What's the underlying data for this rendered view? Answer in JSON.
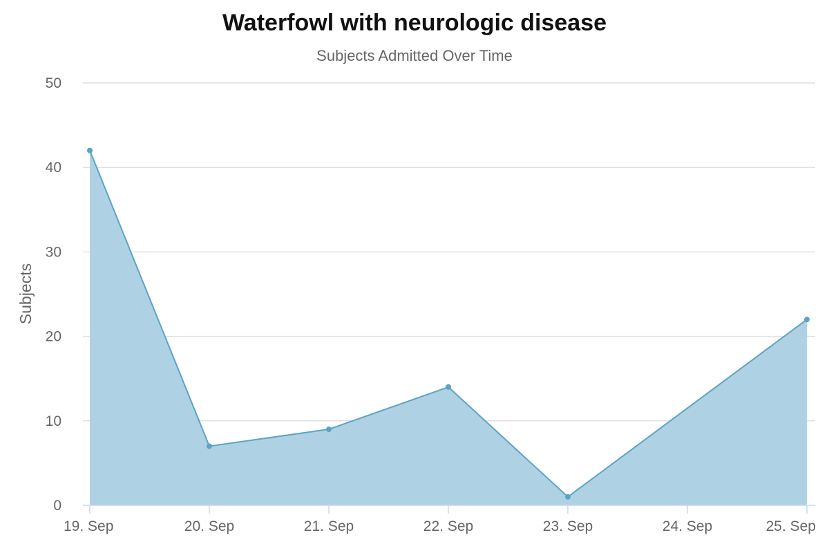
{
  "chart_data": {
    "type": "area",
    "title": "Waterfowl with neurologic disease",
    "subtitle": "Subjects Admitted Over Time",
    "xlabel": "",
    "ylabel": "Subjects",
    "categories": [
      "19. Sep",
      "20. Sep",
      "21. Sep",
      "22. Sep",
      "23. Sep",
      "24. Sep",
      "25. Sep"
    ],
    "series": [
      {
        "values": [
          42,
          7,
          9,
          14,
          1,
          11.5,
          22
        ],
        "markers": [
          true,
          true,
          true,
          true,
          true,
          false,
          true
        ]
      }
    ],
    "ylim": [
      0,
      50
    ],
    "yticks": [
      "0",
      "10",
      "20",
      "30",
      "40",
      "50"
    ],
    "grid": true,
    "legend": "none",
    "colors": {
      "fill": "#aed2e4",
      "line": "#5ba3c5",
      "grid": "#e0e0e0",
      "axis": "#ccd6eb"
    }
  }
}
